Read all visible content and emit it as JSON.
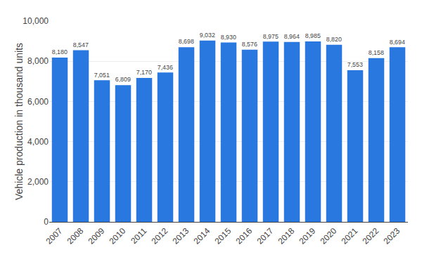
{
  "chart_data": {
    "type": "bar",
    "ylabel": "Vehicle production in thousand units",
    "categories": [
      "2007",
      "2008",
      "2009",
      "2010",
      "2011",
      "2012",
      "2013",
      "2014",
      "2015",
      "2016",
      "2017",
      "2018",
      "2019",
      "2020",
      "2021",
      "2022",
      "2023"
    ],
    "values": [
      8180,
      8547,
      7051,
      6809,
      7170,
      7436,
      8698,
      9032,
      8930,
      8576,
      8975,
      8964,
      8985,
      8820,
      7553,
      8158,
      8694
    ],
    "value_labels": [
      "8,180",
      "8,547",
      "7,051",
      "6,809",
      "7,170",
      "7,436",
      "8,698",
      "9,032",
      "8,930",
      "8,576",
      "8,975",
      "8,964",
      "8,985",
      "8,820",
      "7,553",
      "8,158",
      "8,694"
    ],
    "color": "#2878e0",
    "ylim": [
      0,
      10000
    ],
    "yticks": [
      0,
      {
        "value": 2000,
        "label": "2,000"
      },
      {
        "value": 4000,
        "label": "4,000"
      },
      {
        "value": 6000,
        "label": "6,000"
      },
      {
        "value": 8000,
        "label": "8,000"
      },
      {
        "value": 10000,
        "label": "10,000"
      }
    ],
    "grid": true,
    "data_labels": true
  }
}
